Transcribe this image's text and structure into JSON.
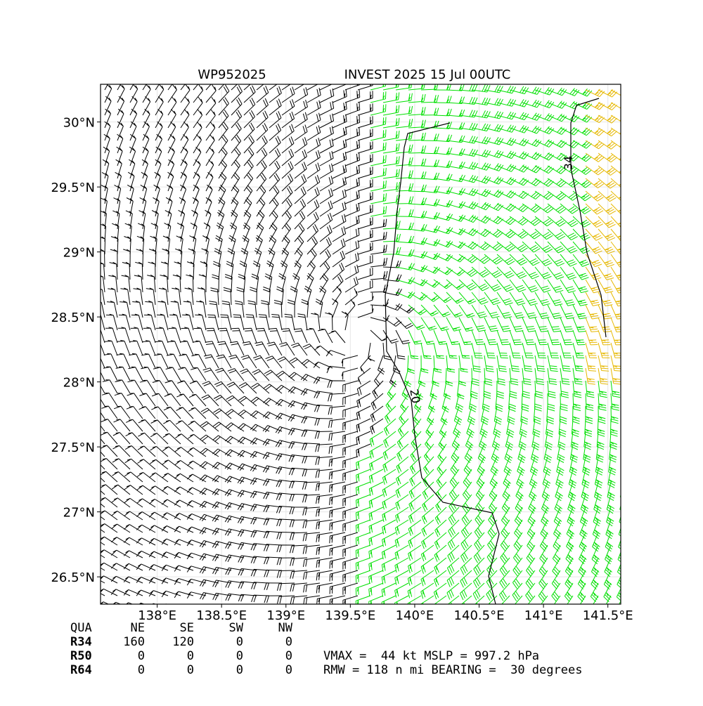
{
  "chart_data": {
    "type": "barbs",
    "title_left": "WP952025",
    "title": "INVEST 2025 15 Jul 00UTC",
    "xlim": [
      137.56,
      141.6
    ],
    "ylim": [
      26.29,
      30.29
    ],
    "xticks": [
      {
        "value": 138,
        "label": "138°E"
      },
      {
        "value": 138.5,
        "label": "138.5°E"
      },
      {
        "value": 139,
        "label": "139°E"
      },
      {
        "value": 139.5,
        "label": "139.5°E"
      },
      {
        "value": 140,
        "label": "140°E"
      },
      {
        "value": 140.5,
        "label": "140.5°E"
      },
      {
        "value": 141,
        "label": "141°E"
      },
      {
        "value": 141.5,
        "label": "141.5°E"
      }
    ],
    "yticks": [
      {
        "value": 26.5,
        "label": "26.5°N"
      },
      {
        "value": 27,
        "label": "27°N"
      },
      {
        "value": 27.5,
        "label": "27.5°N"
      },
      {
        "value": 28,
        "label": "28°N"
      },
      {
        "value": 28.5,
        "label": "28.5°N"
      },
      {
        "value": 29,
        "label": "29°N"
      },
      {
        "value": 29.5,
        "label": "29.5°N"
      },
      {
        "value": 30,
        "label": "30°N"
      }
    ],
    "contours": [
      34,
      20
    ]
  },
  "table": {
    "header": [
      "QUA",
      "NE",
      "SE",
      "SW",
      "NW"
    ],
    "rows": [
      [
        "R34",
        "160",
        "120",
        "0",
        "0"
      ],
      [
        "R50",
        "0",
        "0",
        "0",
        "0"
      ],
      [
        "R64",
        "0",
        "0",
        "0",
        "0"
      ]
    ]
  },
  "stats": [
    "VMAX =  44 kt MSLP = 997.2 hPa",
    "RMW = 118 n mi BEARING =  30 degrees"
  ]
}
